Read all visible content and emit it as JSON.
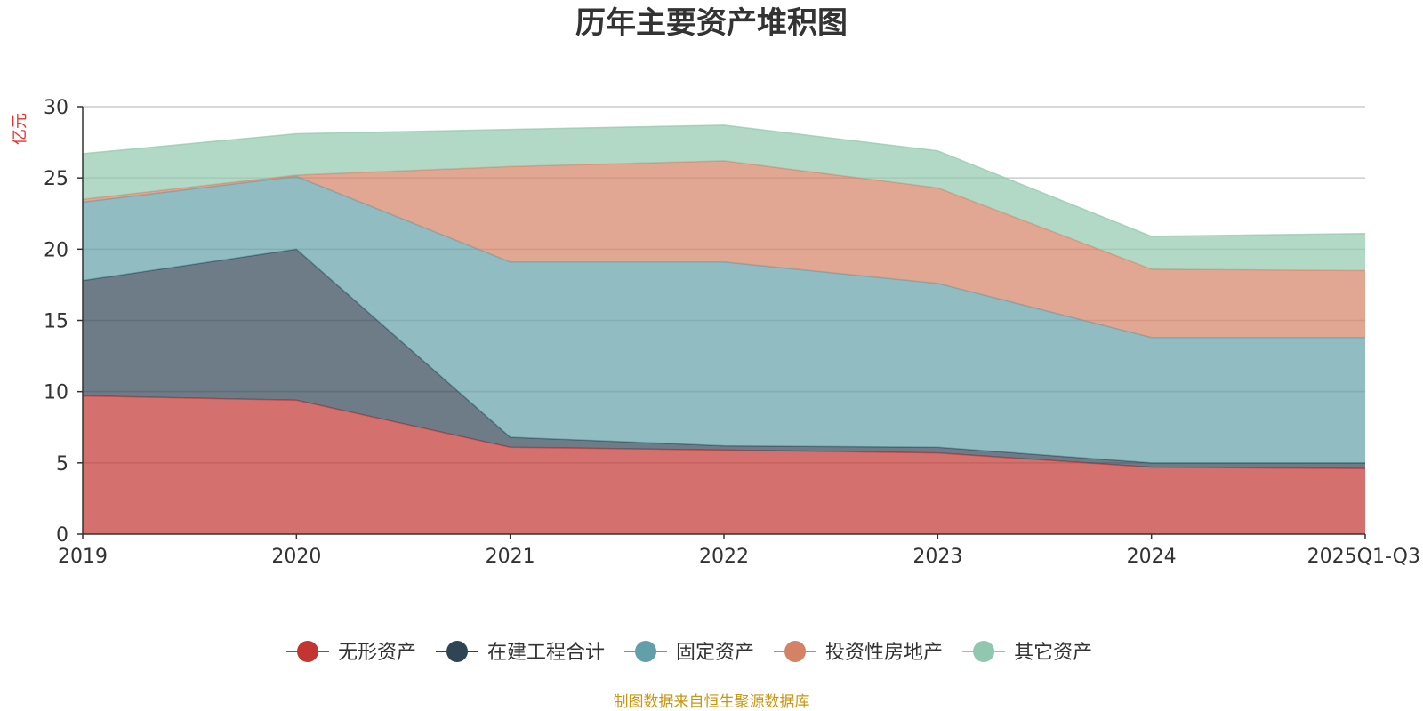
{
  "chart_data": {
    "type": "area",
    "stacked": true,
    "title": "历年主要资产堆积图",
    "unit_label": "亿元",
    "categories": [
      "2019",
      "2020",
      "2021",
      "2022",
      "2023",
      "2024",
      "2025Q1-Q3"
    ],
    "ylim": [
      0,
      30
    ],
    "yticks": [
      "0",
      "5",
      "10",
      "15",
      "20",
      "25",
      "30"
    ],
    "grid": true,
    "legend_position": "bottom",
    "series": [
      {
        "name": "无形资产",
        "color": "#c23531",
        "values": [
          9.7,
          9.4,
          6.1,
          5.9,
          5.7,
          4.7,
          4.6
        ]
      },
      {
        "name": "在建工程合计",
        "color": "#2f4554",
        "values": [
          8.1,
          10.6,
          0.7,
          0.3,
          0.4,
          0.3,
          0.4
        ]
      },
      {
        "name": "固定资产",
        "color": "#61a0a8",
        "values": [
          5.5,
          5.1,
          12.3,
          12.9,
          11.5,
          8.8,
          8.8
        ]
      },
      {
        "name": "投资性房地产",
        "color": "#d48265",
        "values": [
          0.2,
          0.1,
          6.7,
          7.1,
          6.7,
          4.8,
          4.7
        ]
      },
      {
        "name": "其它资产",
        "color": "#91c7ae",
        "values": [
          3.2,
          2.9,
          2.6,
          2.5,
          2.6,
          2.3,
          2.6
        ]
      }
    ],
    "source": "制图数据来自恒生聚源数据库"
  }
}
